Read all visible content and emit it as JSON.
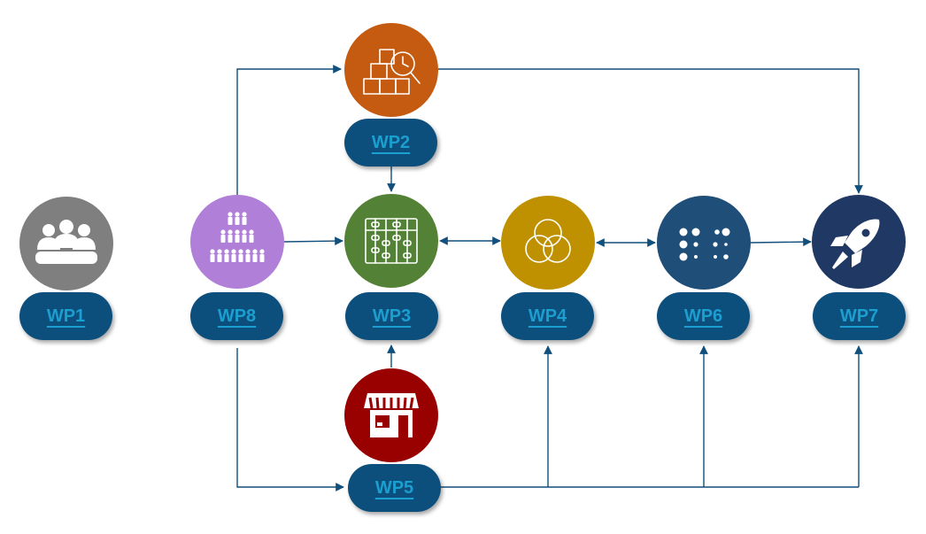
{
  "work_packages": [
    {
      "id": "wp1",
      "label": "WP1",
      "color": "#7f7f7f",
      "icon": "group-meeting-icon"
    },
    {
      "id": "wp2",
      "label": "WP2",
      "color": "#c55a11",
      "icon": "boxes-clock-search-icon"
    },
    {
      "id": "wp3",
      "label": "WP3",
      "color": "#538135",
      "icon": "abacus-icon"
    },
    {
      "id": "wp4",
      "label": "WP4",
      "color": "#bf9000",
      "icon": "venn-circles-icon"
    },
    {
      "id": "wp5",
      "label": "WP5",
      "color": "#990000",
      "icon": "storefront-icon"
    },
    {
      "id": "wp6",
      "label": "WP6",
      "color": "#1f4e79",
      "icon": "dot-grid-icon"
    },
    {
      "id": "wp7",
      "label": "WP7",
      "color": "#203864",
      "icon": "rocket-icon"
    },
    {
      "id": "wp8",
      "label": "WP8",
      "color": "#b07fd8",
      "icon": "people-pyramid-icon"
    }
  ],
  "label_pill_color": "#114f7c",
  "label_text_color": "#1a9fd0",
  "connector_color": "#114f7c"
}
